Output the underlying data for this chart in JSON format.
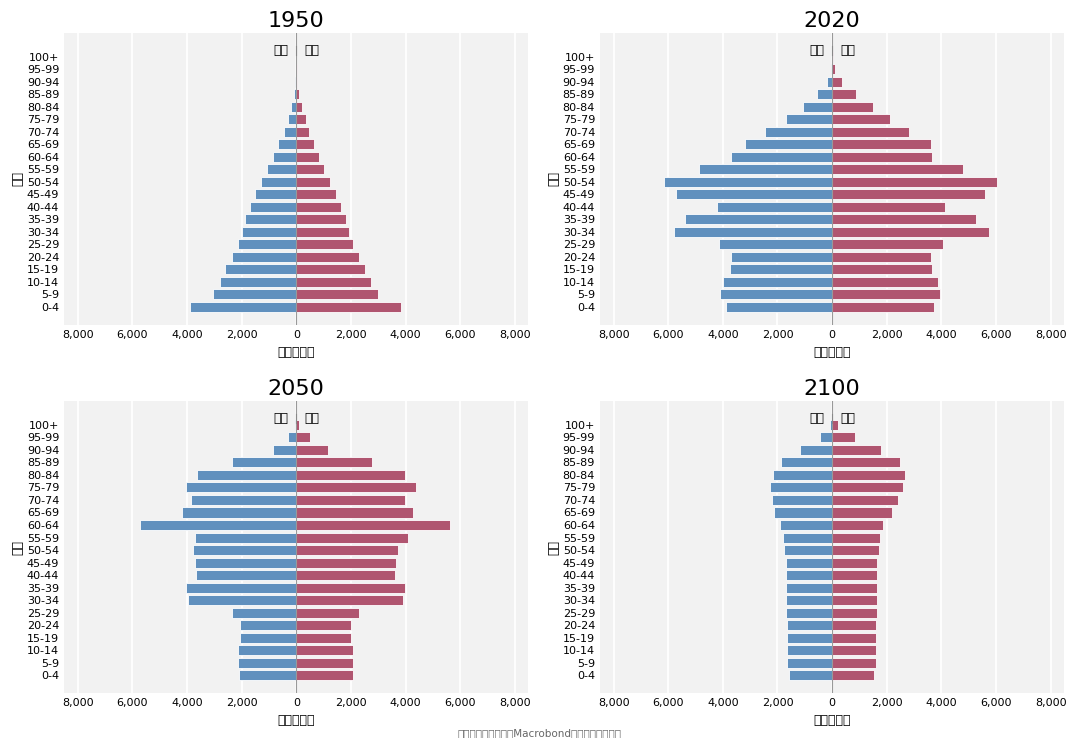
{
  "age_groups": [
    "0-4",
    "5-9",
    "10-14",
    "15-19",
    "20-24",
    "25-29",
    "30-34",
    "35-39",
    "40-44",
    "45-49",
    "50-54",
    "55-59",
    "60-64",
    "65-69",
    "70-74",
    "75-79",
    "80-84",
    "85-89",
    "90-94",
    "95-99",
    "100+"
  ],
  "years": [
    "1950",
    "2020",
    "2050",
    "2100"
  ],
  "male_color": "#6090BE",
  "female_color": "#B05570",
  "background_color": "#F2F2F2",
  "gridline_color": "#FFFFFF",
  "title_fontsize": 16,
  "tick_fontsize": 8,
  "axis_label_fontsize": 9,
  "legend_fontsize": 9,
  "xlim": [
    -8500,
    8500
  ],
  "xticks": [
    -8000,
    -6000,
    -4000,
    -2000,
    0,
    2000,
    4000,
    6000,
    8000
  ],
  "xticklabels": [
    "8,000",
    "6,000",
    "4,000",
    "2,000",
    "0",
    "2,000",
    "4,000",
    "6,000",
    "8,000"
  ],
  "xlabel": "人口（万）",
  "ylabel": "年龄",
  "legend_male": "男性",
  "legend_female": "女性",
  "source_text": "资料来源：联合国，Macrobond，招商銀行研究院",
  "data": {
    "1950": {
      "male": [
        3900,
        3050,
        2800,
        2600,
        2350,
        2150,
        1980,
        1870,
        1700,
        1500,
        1280,
        1060,
        860,
        660,
        460,
        310,
        175,
        82,
        32,
        8,
        1
      ],
      "female": [
        3820,
        2980,
        2730,
        2530,
        2280,
        2080,
        1930,
        1820,
        1650,
        1450,
        1230,
        1020,
        830,
        650,
        465,
        345,
        215,
        108,
        44,
        13,
        2
      ]
    },
    "2020": {
      "male": [
        3900,
        4100,
        4000,
        3750,
        3700,
        4150,
        5800,
        5380,
        4220,
        5700,
        6150,
        4880,
        3720,
        3200,
        2460,
        1680,
        1060,
        560,
        190,
        52,
        8
      ],
      "female": [
        3720,
        3960,
        3860,
        3660,
        3620,
        4060,
        5750,
        5280,
        4120,
        5580,
        6050,
        4780,
        3660,
        3620,
        2810,
        2120,
        1510,
        870,
        370,
        108,
        18
      ]
    },
    "2050": {
      "male": [
        2100,
        2120,
        2120,
        2060,
        2060,
        2360,
        3960,
        4020,
        3660,
        3710,
        3770,
        3720,
        5720,
        4180,
        3870,
        4020,
        3620,
        2360,
        860,
        295,
        55
      ],
      "female": [
        2060,
        2070,
        2070,
        2010,
        2010,
        2310,
        3920,
        3970,
        3610,
        3660,
        3720,
        4080,
        5630,
        4280,
        3970,
        4380,
        3990,
        2780,
        1170,
        490,
        115
      ]
    },
    "2100": {
      "male": [
        1580,
        1640,
        1640,
        1640,
        1640,
        1680,
        1690,
        1700,
        1700,
        1700,
        1750,
        1810,
        1910,
        2110,
        2210,
        2260,
        2180,
        1880,
        1170,
        460,
        82
      ],
      "female": [
        1540,
        1590,
        1590,
        1590,
        1590,
        1630,
        1640,
        1650,
        1650,
        1650,
        1700,
        1760,
        1870,
        2210,
        2420,
        2580,
        2680,
        2470,
        1780,
        840,
        200
      ]
    }
  }
}
